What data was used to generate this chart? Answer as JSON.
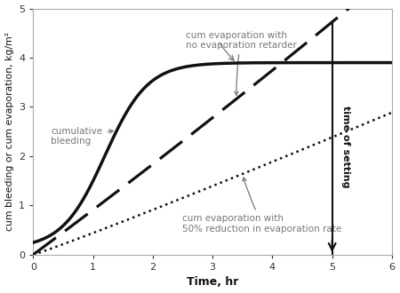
{
  "title": "",
  "xlabel": "Time, hr",
  "ylabel": "cum bleeding or cum evaporation, kg/m²",
  "xlim": [
    0,
    6
  ],
  "ylim": [
    0.0,
    5.0
  ],
  "xticks": [
    0,
    1,
    2,
    3,
    4,
    5,
    6
  ],
  "yticks": [
    0.0,
    1.0,
    2.0,
    3.0,
    4.0,
    5.0
  ],
  "time_of_setting_x": 5.0,
  "background_color": "#ffffff",
  "line_color": "#111111",
  "annotation_color": "#777777"
}
